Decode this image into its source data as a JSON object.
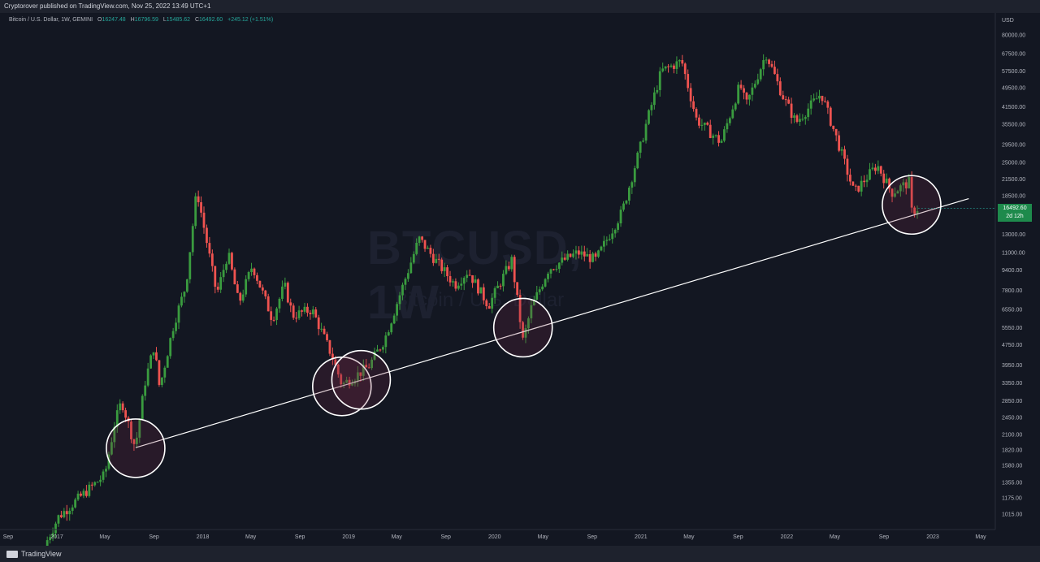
{
  "header": {
    "published": "Cryptorover published on TradingView.com, Nov 25, 2022 13:49 UTC+1"
  },
  "legend": {
    "symbol": "Bitcoin / U.S. Dollar, 1W, GEMINI",
    "o_label": "O",
    "o": "16247.48",
    "h_label": "H",
    "h": "16796.59",
    "l_label": "L",
    "l": "15485.62",
    "c_label": "C",
    "c": "16492.60",
    "change": "+245.12 (+1.51%)"
  },
  "watermark": {
    "ticker": "BTCUSD, 1W",
    "name": "Bitcoin / U.S. Dollar"
  },
  "price_tag": {
    "value": "16492.60",
    "countdown": "2d 12h"
  },
  "footer": {
    "brand": "TradingView"
  },
  "colors": {
    "up": "#26a69a",
    "up_candle": "#3a9c3f",
    "down": "#ef5350",
    "background": "#131722",
    "trendline": "#ffffff"
  },
  "chart_data": {
    "type": "candlestick",
    "symbol": "BTCUSD",
    "interval": "1W",
    "y_scale": "log",
    "y_unit": "USD",
    "y_ticks": [
      "80000.00",
      "67500.00",
      "57500.00",
      "49500.00",
      "41500.00",
      "35500.00",
      "29500.00",
      "25000.00",
      "21500.00",
      "18500.00",
      "13000.00",
      "11000.00",
      "9400.00",
      "7800.00",
      "6550.00",
      "5550.00",
      "4750.00",
      "3950.00",
      "3350.00",
      "2850.00",
      "2450.00",
      "2100.00",
      "1820.00",
      "1580.00",
      "1355.00",
      "1175.00",
      "1015.00"
    ],
    "x_ticks": [
      "Sep",
      "2017",
      "May",
      "Sep",
      "2018",
      "May",
      "Sep",
      "2019",
      "May",
      "Sep",
      "2020",
      "May",
      "Sep",
      "2021",
      "May",
      "Sep",
      "2022",
      "May",
      "Sep",
      "2023",
      "May"
    ],
    "close_path": [
      {
        "date": "2016-12-01",
        "close": 760
      },
      {
        "date": "2017-01-05",
        "close": 990
      },
      {
        "date": "2017-03-01",
        "close": 1190
      },
      {
        "date": "2017-05-01",
        "close": 1450
      },
      {
        "date": "2017-05-25",
        "close": 2300
      },
      {
        "date": "2017-06-12",
        "close": 2850
      },
      {
        "date": "2017-07-16",
        "close": 1860
      },
      {
        "date": "2017-08-10",
        "close": 3400
      },
      {
        "date": "2017-09-01",
        "close": 4700
      },
      {
        "date": "2017-09-15",
        "close": 3200
      },
      {
        "date": "2017-10-20",
        "close": 5700
      },
      {
        "date": "2017-11-20",
        "close": 8200
      },
      {
        "date": "2017-12-17",
        "close": 19500
      },
      {
        "date": "2018-02-05",
        "close": 7500
      },
      {
        "date": "2018-03-05",
        "close": 11000
      },
      {
        "date": "2018-04-01",
        "close": 6900
      },
      {
        "date": "2018-05-05",
        "close": 9800
      },
      {
        "date": "2018-06-24",
        "close": 6000
      },
      {
        "date": "2018-07-24",
        "close": 8200
      },
      {
        "date": "2018-08-14",
        "close": 6200
      },
      {
        "date": "2018-10-01",
        "close": 6550
      },
      {
        "date": "2018-11-20",
        "close": 4300
      },
      {
        "date": "2018-12-15",
        "close": 3300
      },
      {
        "date": "2019-01-15",
        "close": 3550
      },
      {
        "date": "2019-02-20",
        "close": 3900
      },
      {
        "date": "2019-04-01",
        "close": 5000
      },
      {
        "date": "2019-05-15",
        "close": 8000
      },
      {
        "date": "2019-06-26",
        "close": 12500
      },
      {
        "date": "2019-08-01",
        "close": 10500
      },
      {
        "date": "2019-09-24",
        "close": 8200
      },
      {
        "date": "2019-10-26",
        "close": 9300
      },
      {
        "date": "2019-12-17",
        "close": 6800
      },
      {
        "date": "2020-02-13",
        "close": 10300
      },
      {
        "date": "2020-03-12",
        "close": 4900
      },
      {
        "date": "2020-04-01",
        "close": 6600
      },
      {
        "date": "2020-05-15",
        "close": 9500
      },
      {
        "date": "2020-07-27",
        "close": 11000
      },
      {
        "date": "2020-09-10",
        "close": 10300
      },
      {
        "date": "2020-11-15",
        "close": 16000
      },
      {
        "date": "2020-12-31",
        "close": 29000
      },
      {
        "date": "2021-01-15",
        "close": 36000
      },
      {
        "date": "2021-02-21",
        "close": 57500
      },
      {
        "date": "2021-04-13",
        "close": 63000
      },
      {
        "date": "2021-05-20",
        "close": 37000
      },
      {
        "date": "2021-07-20",
        "close": 30000
      },
      {
        "date": "2021-09-06",
        "close": 51000
      },
      {
        "date": "2021-09-21",
        "close": 42000
      },
      {
        "date": "2021-11-10",
        "close": 67500
      },
      {
        "date": "2021-12-20",
        "close": 46500
      },
      {
        "date": "2022-01-24",
        "close": 36000
      },
      {
        "date": "2022-03-28",
        "close": 47000
      },
      {
        "date": "2022-05-12",
        "close": 29000
      },
      {
        "date": "2022-06-18",
        "close": 19000
      },
      {
        "date": "2022-08-15",
        "close": 24500
      },
      {
        "date": "2022-09-20",
        "close": 19000
      },
      {
        "date": "2022-11-05",
        "close": 21000
      },
      {
        "date": "2022-11-09",
        "close": 16000
      },
      {
        "date": "2022-11-25",
        "close": 16492.6
      }
    ],
    "trendline": {
      "from": {
        "date": "2017-07-17",
        "price": 1860
      },
      "to": {
        "date": "2023-04-01",
        "price": 18000
      },
      "color": "#ffffff"
    },
    "highlight_circles": [
      {
        "date": "2017-07-17",
        "price": 1850
      },
      {
        "date": "2018-12-15",
        "price": 3250
      },
      {
        "date": "2019-02-01",
        "price": 3450
      },
      {
        "date": "2020-03-12",
        "price": 5550
      },
      {
        "date": "2022-11-09",
        "price": 17000
      }
    ],
    "last_price": 16492.6
  }
}
